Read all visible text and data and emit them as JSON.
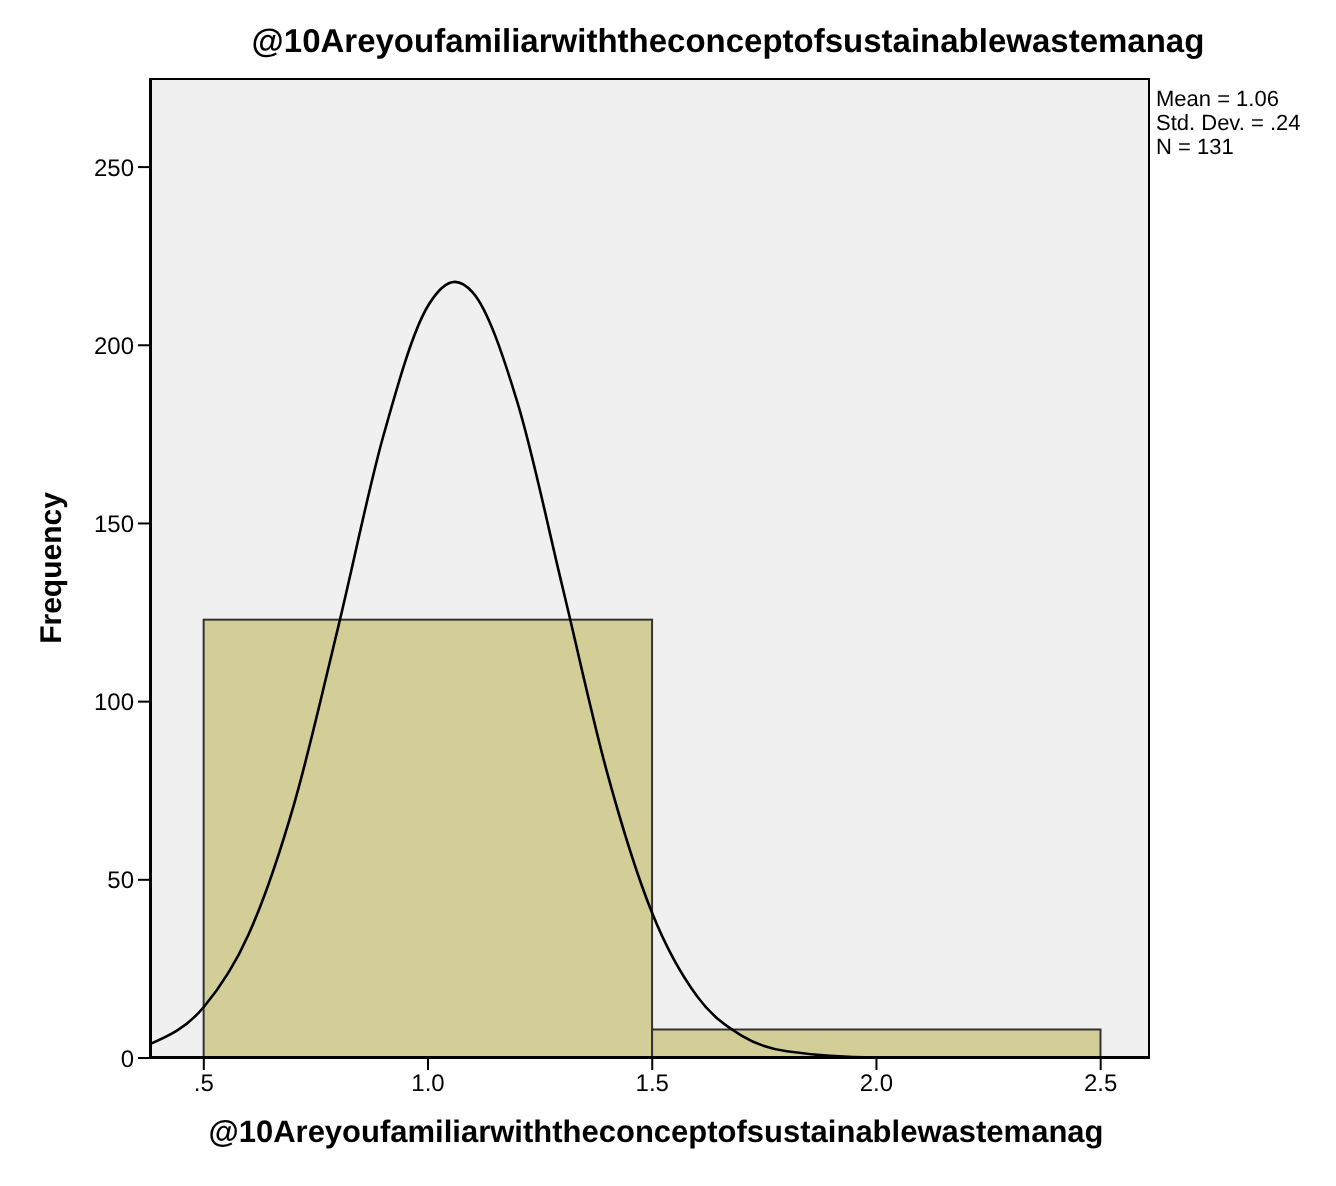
{
  "chart_data": {
    "type": "histogram",
    "title": "@10Areyoufamiliarwiththeconceptofsustainablewastemanag",
    "xlabel": "@10Areyoufamiliarwiththeconceptofsustainablewastemanag",
    "ylabel": "Frequency",
    "bins": [
      0.5,
      1.5,
      2.5
    ],
    "values": [
      123,
      8
    ],
    "color": "#d3ce97",
    "series": [
      {
        "type": "line",
        "color": "#000000",
        "x": [
          0.38,
          0.5,
          0.6,
          0.7,
          0.8,
          0.9,
          1.0,
          1.06,
          1.1,
          1.2,
          1.3,
          1.4,
          1.5,
          1.6,
          1.7,
          1.8,
          2.0,
          2.2,
          2.6
        ],
        "values": [
          3.9,
          14.3,
          34.7,
          70.7,
          121.1,
          174.4,
          211.1,
          217.8,
          214.8,
          183.7,
          132.1,
          79.8,
          40.6,
          17.3,
          6.2,
          1.9,
          0.1,
          0,
          0
        ]
      }
    ],
    "xlim": [
      0.38,
      2.61
    ],
    "xticks": [
      {
        "value": 0.5,
        "label": ".5"
      },
      {
        "value": 1,
        "label": "1.0"
      },
      {
        "value": 1.5,
        "label": "1.5"
      },
      {
        "value": 2,
        "label": "2.0"
      },
      {
        "value": 2.5,
        "label": "2.5"
      }
    ],
    "ylim": [
      0,
      275
    ],
    "yticks": [
      0,
      50,
      100,
      150,
      200,
      250
    ],
    "annotations": [
      "Mean = 1.06",
      "Std. Dev. = .24",
      "N = 131"
    ],
    "grid": false
  }
}
